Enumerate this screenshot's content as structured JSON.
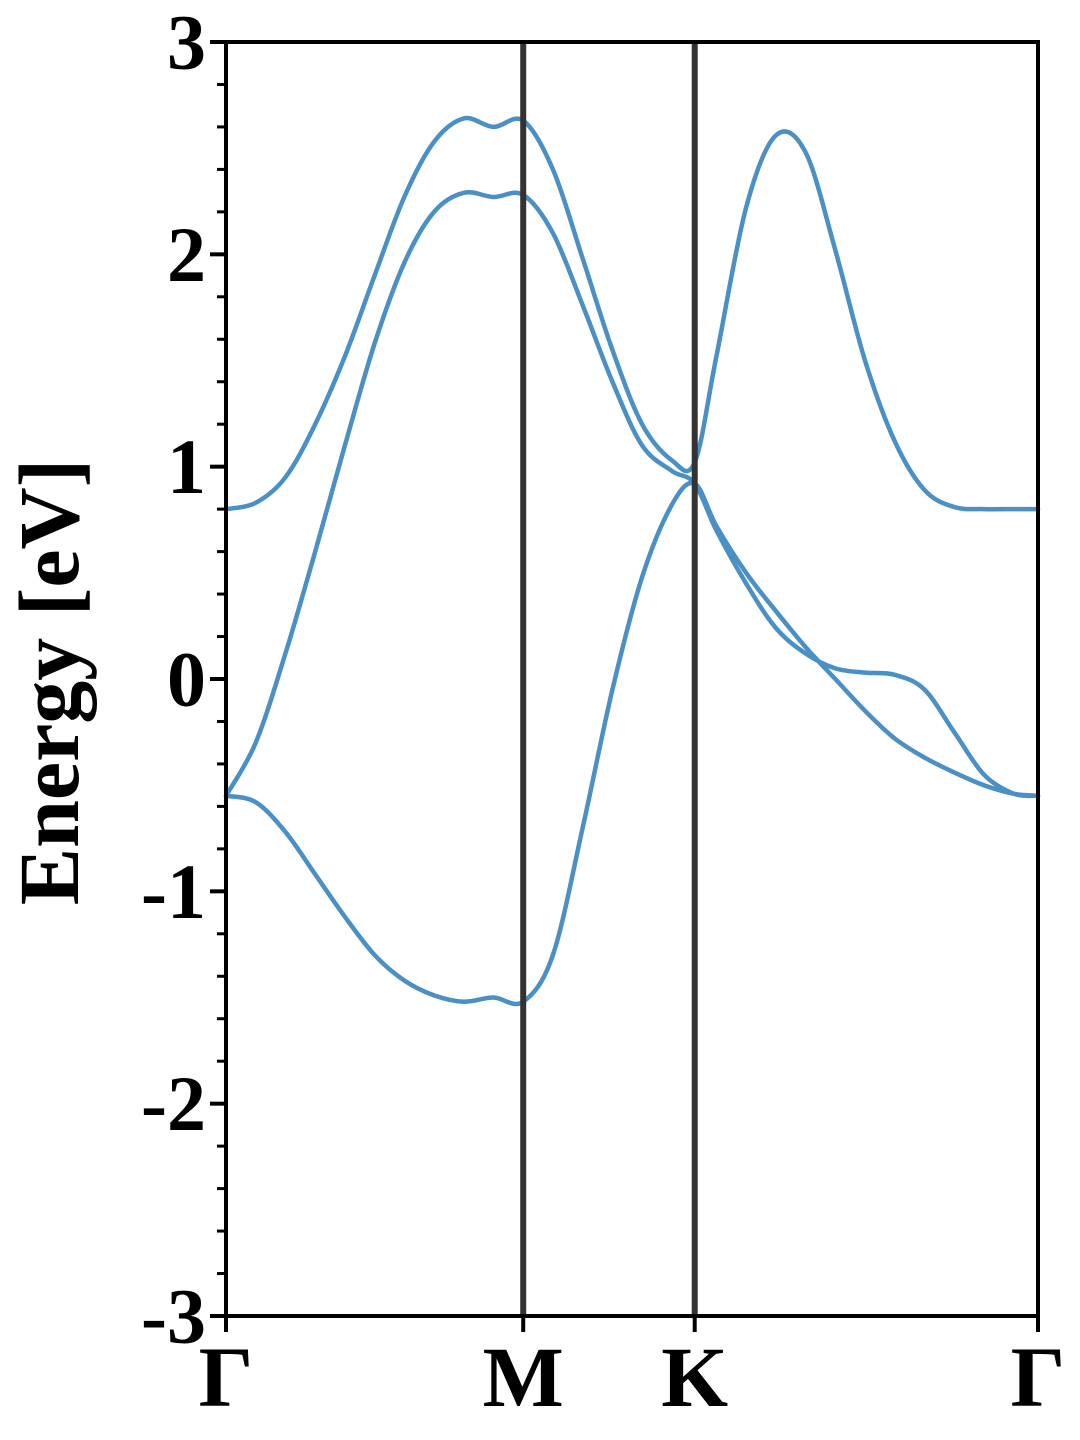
{
  "chart_data": {
    "type": "line",
    "title": "",
    "xlabel": "",
    "ylabel": "Energy [eV]",
    "ylim": [
      -3,
      3
    ],
    "yticks": [
      3,
      2,
      1,
      0,
      -1,
      -2,
      -3
    ],
    "ytick_labels": [
      "3",
      "2",
      "1",
      "0",
      "-1",
      "-2",
      "-3"
    ],
    "y_minor_step": 0.2,
    "xlim": [
      0,
      2.732
    ],
    "high_symmetry_points": [
      {
        "label": "Γ",
        "x": 0
      },
      {
        "label": "M",
        "x": 1.0
      },
      {
        "label": "K",
        "x": 1.577
      },
      {
        "label": "Γ",
        "x": 2.732
      }
    ],
    "grid": false,
    "legend": "none",
    "colors": {
      "band": "#4a90c4",
      "kpoint_line": "#333333",
      "axis": "#000000"
    },
    "series": [
      {
        "x": [
          0,
          0.1,
          0.2,
          0.3,
          0.4,
          0.5,
          0.6,
          0.7,
          0.8,
          0.9,
          1.0,
          1.1,
          1.2,
          1.3,
          1.4,
          1.5,
          1.577,
          1.65,
          1.75,
          1.85,
          1.95,
          2.05,
          2.15,
          2.25,
          2.35,
          2.45,
          2.55,
          2.65,
          2.732
        ],
        "values": [
          -0.55,
          -0.58,
          -0.72,
          -0.92,
          -1.12,
          -1.3,
          -1.42,
          -1.49,
          -1.52,
          -1.5,
          -1.52,
          -1.3,
          -0.7,
          -0.05,
          0.48,
          0.82,
          0.92,
          0.72,
          0.5,
          0.32,
          0.15,
          0.0,
          -0.15,
          -0.28,
          -0.37,
          -0.44,
          -0.5,
          -0.54,
          -0.55
        ]
      },
      {
        "x": [
          0,
          0.1,
          0.2,
          0.3,
          0.4,
          0.5,
          0.6,
          0.7,
          0.8,
          0.9,
          1.0,
          1.1,
          1.2,
          1.3,
          1.4,
          1.5,
          1.577,
          1.65,
          1.75,
          1.85,
          1.95,
          2.05,
          2.15,
          2.25,
          2.35,
          2.45,
          2.55,
          2.65,
          2.732
        ],
        "values": [
          -0.55,
          -0.3,
          0.12,
          0.6,
          1.1,
          1.58,
          1.96,
          2.2,
          2.29,
          2.27,
          2.28,
          2.1,
          1.76,
          1.4,
          1.1,
          0.98,
          0.92,
          0.7,
          0.45,
          0.24,
          0.12,
          0.05,
          0.03,
          0.02,
          -0.05,
          -0.25,
          -0.45,
          -0.54,
          -0.55
        ]
      },
      {
        "x": [
          0,
          0.1,
          0.2,
          0.3,
          0.4,
          0.5,
          0.6,
          0.7,
          0.8,
          0.9,
          1.0,
          1.1,
          1.2,
          1.3,
          1.4,
          1.5,
          1.577,
          1.65,
          1.75,
          1.85,
          1.95,
          2.05,
          2.15,
          2.25,
          2.35,
          2.45,
          2.55,
          2.65,
          2.732
        ],
        "values": [
          0.8,
          0.83,
          0.95,
          1.2,
          1.52,
          1.9,
          2.27,
          2.53,
          2.64,
          2.6,
          2.63,
          2.4,
          1.98,
          1.55,
          1.2,
          1.03,
          1.02,
          1.52,
          2.22,
          2.56,
          2.48,
          2.02,
          1.5,
          1.12,
          0.89,
          0.81,
          0.8,
          0.8,
          0.8
        ]
      }
    ]
  }
}
